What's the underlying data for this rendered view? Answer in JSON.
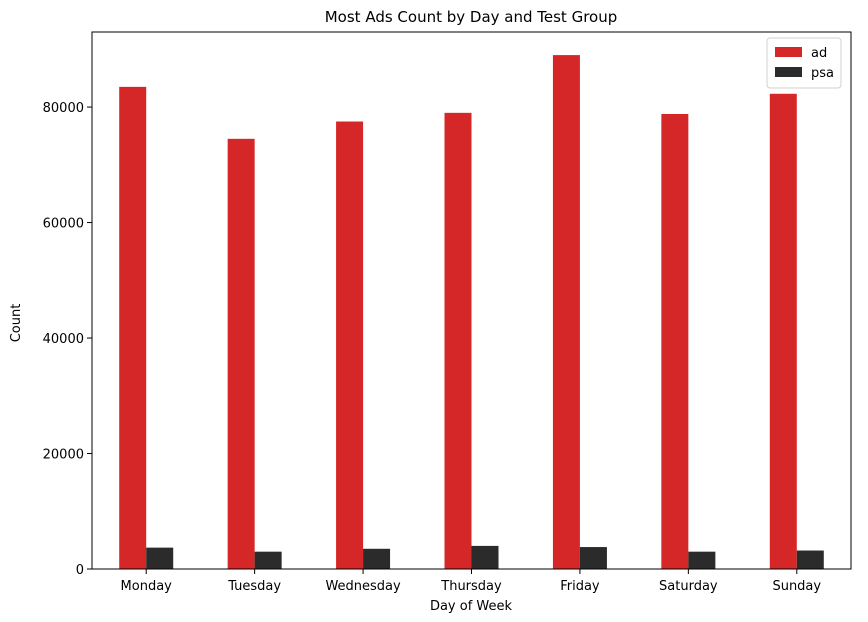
{
  "chart_data": {
    "type": "bar",
    "title": "Most Ads Count by Day and Test Group",
    "xlabel": "Day of Week",
    "ylabel": "Count",
    "categories": [
      "Monday",
      "Tuesday",
      "Wednesday",
      "Thursday",
      "Friday",
      "Saturday",
      "Sunday"
    ],
    "series": [
      {
        "name": "ad",
        "color": "#d62728",
        "values": [
          83500,
          74500,
          77500,
          79000,
          89000,
          78800,
          82300
        ]
      },
      {
        "name": "psa",
        "color": "#2b2b2b",
        "values": [
          3700,
          3000,
          3500,
          4000,
          3800,
          3000,
          3200
        ]
      }
    ],
    "ylim": [
      0,
      93000
    ],
    "yticks": [
      0,
      20000,
      40000,
      60000,
      80000
    ],
    "ytick_labels": [
      "0",
      "20000",
      "40000",
      "60000",
      "80000"
    ],
    "grid": false,
    "legend_position": "top-right"
  }
}
